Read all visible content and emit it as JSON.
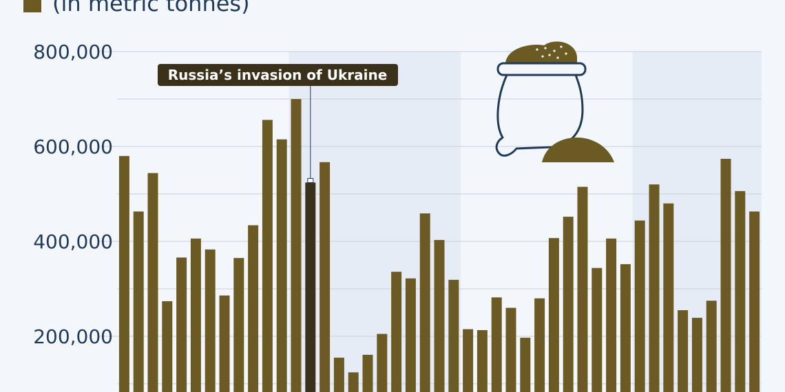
{
  "legend": {
    "label": "(in metric tonnes)",
    "swatch_color": "#6b5a23"
  },
  "colors": {
    "bar": "#6b5a23",
    "bar_highlight": "#3b301a",
    "band": "#e6ecf5",
    "grid": "#c8d0db",
    "icon": "#1f3a5a",
    "annotation_bg": "#3b301a"
  },
  "icon": {
    "name": "grain-sack-icon"
  },
  "chart_data": {
    "type": "bar",
    "title": "",
    "xlabel": "",
    "ylabel": "",
    "ylim": [
      100000,
      800000
    ],
    "yticks": [
      200000,
      400000,
      600000,
      800000
    ],
    "ytick_labels": [
      "200,000",
      "400,000",
      "600,000",
      "800,000"
    ],
    "grid": true,
    "highlight_index": 13,
    "shaded_bands": [
      [
        12,
        23
      ],
      [
        36,
        44
      ]
    ],
    "values": [
      580000,
      463000,
      544000,
      274000,
      366000,
      406000,
      383000,
      286000,
      365000,
      434000,
      656000,
      615000,
      700000,
      524000,
      567000,
      155000,
      124000,
      161000,
      205000,
      336000,
      322000,
      459000,
      403000,
      319000,
      215000,
      213000,
      282000,
      260000,
      197000,
      280000,
      407000,
      452000,
      515000,
      344000,
      406000,
      352000,
      444000,
      520000,
      480000,
      255000,
      239000,
      275000,
      574000,
      506000,
      463000
    ],
    "annotation": {
      "text": "Russia’s invasion of Ukraine",
      "bar_index": 13
    }
  }
}
